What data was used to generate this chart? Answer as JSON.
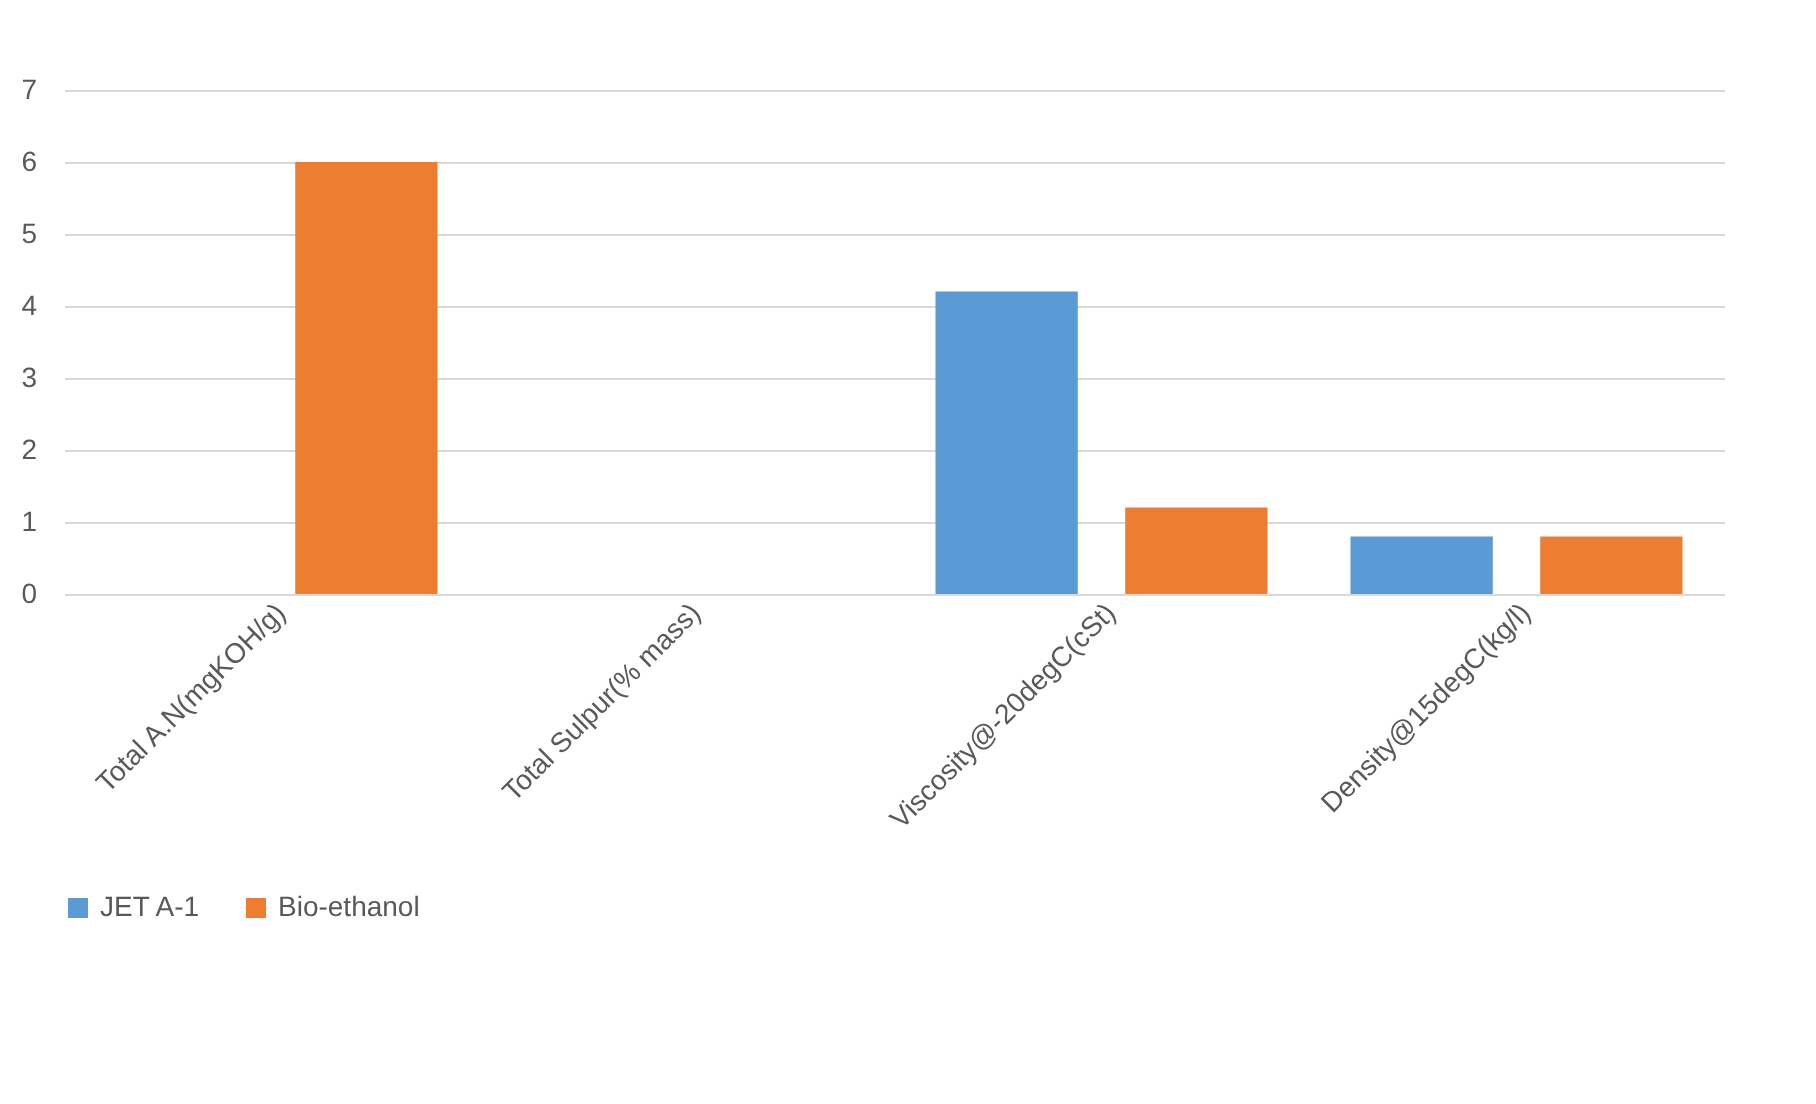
{
  "chart_data": {
    "type": "bar",
    "categories": [
      "Total A.N(mgKOH/g)",
      "Total Sulpur(% mass)",
      "Viscosity@-20degC(cSt)",
      "Density@15degC(kg/l)"
    ],
    "series": [
      {
        "name": "JET A-1",
        "color": "#5b9bd5",
        "values": [
          0,
          0,
          4.2,
          0.8
        ]
      },
      {
        "name": "Bio-ethanol",
        "color": "#ed7d31",
        "values": [
          6,
          0,
          1.2,
          0.8
        ]
      }
    ],
    "ylim": [
      0,
      7
    ],
    "yticks": [
      0,
      1,
      2,
      3,
      4,
      5,
      6,
      7
    ],
    "grid": "y",
    "legend": "bottom"
  }
}
